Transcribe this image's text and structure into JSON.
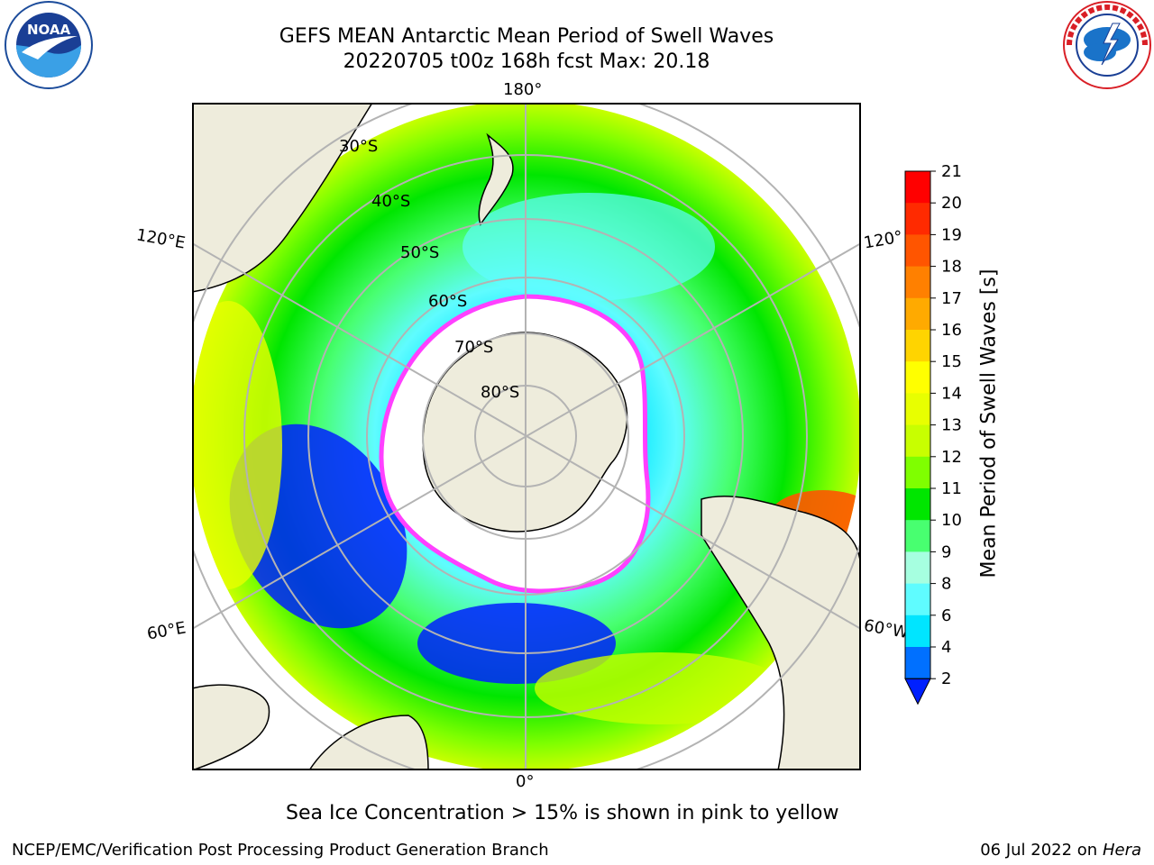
{
  "title": {
    "line1": "GEFS MEAN Antarctic Mean Period of Swell Waves",
    "line2": "20220705 t00z 168h fcst   Max: 20.18"
  },
  "map": {
    "projection": "south-polar-stereographic",
    "longitude_labels": {
      "top": "180°",
      "bottom": "0°",
      "left_upper": "120°E",
      "left_lower": "60°E",
      "right_upper": "120°",
      "right_lower": "60°W"
    },
    "latitude_labels": [
      "30°S",
      "40°S",
      "50°S",
      "60°S",
      "70°S",
      "80°S"
    ],
    "land_color": "#eeecdc",
    "ice_edge_color": "#ff40ff",
    "ocean_background": "#ffffff"
  },
  "colorbar": {
    "label": "Mean Period of Swell Waves [s]",
    "ticks": [
      "21",
      "20",
      "19",
      "18",
      "17",
      "16",
      "15",
      "14",
      "13",
      "12",
      "11",
      "10",
      "9",
      "8",
      "6",
      "4",
      "2"
    ],
    "colors_top_to_bottom": [
      "#ff0000",
      "#ff2a00",
      "#ff5500",
      "#ff8000",
      "#ffaa00",
      "#ffd400",
      "#ffff00",
      "#e8ff00",
      "#c8ff00",
      "#7fff00",
      "#00e600",
      "#48ff70",
      "#a6ffe0",
      "#5ffcff",
      "#00e5ff",
      "#0070ff"
    ],
    "extend_min_color": "#0020ff"
  },
  "notes": {
    "sea_ice": "Sea Ice Concentration > 15% is shown in pink to yellow"
  },
  "footer": {
    "left": "NCEP/EMC/Verification Post Processing Product Generation Branch",
    "right_date": "06 Jul 2022 on ",
    "right_host": "Hera"
  },
  "logos": {
    "noaa_text": "NOAA",
    "nws_text": "NATIONAL WEATHER SERVICE"
  }
}
